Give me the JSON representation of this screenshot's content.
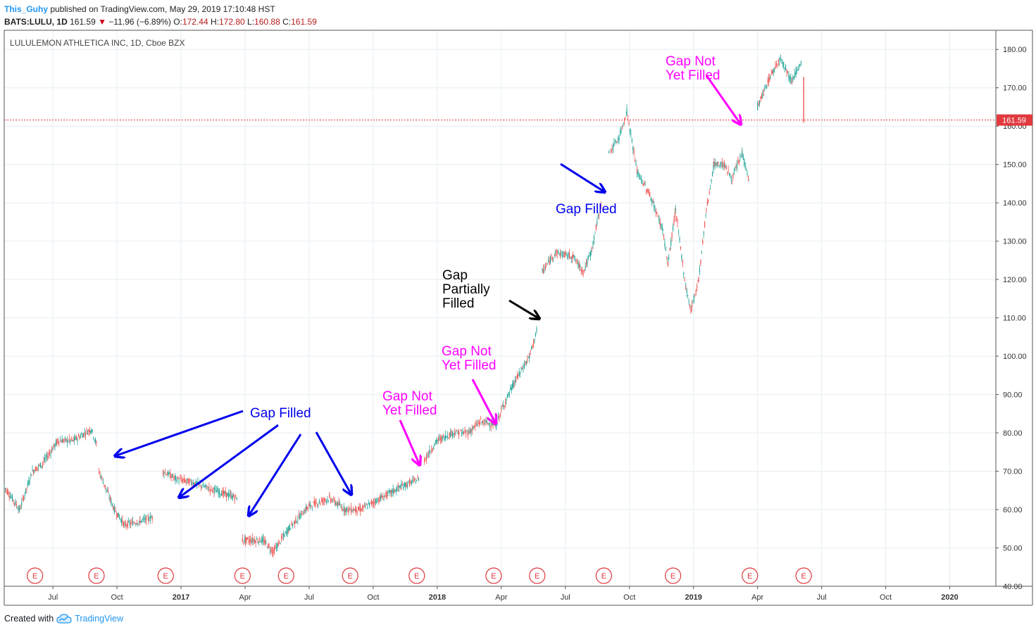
{
  "header": {
    "publisher": "This_Guhy",
    "published_text": "published on TradingView.com, May 29, 2019 17:10:48 HST",
    "symbol": "BATS:LULU, 1D",
    "last": "161.59",
    "change": "−11.96 (−6.89%)",
    "o_label": "O:",
    "o_value": "172.44",
    "h_label": "H:",
    "h_value": "172.80",
    "l_label": "L:",
    "l_value": "160.88",
    "c_label": "C:",
    "c_value": "161.59"
  },
  "footer": {
    "created_with": "Created with",
    "brand": "TradingView"
  },
  "chart_data": {
    "type": "candlestick",
    "title": "LULULEMON ATHLETICA INC, 1D, Cboe BZX",
    "ylim": [
      40,
      185
    ],
    "y_ticks": [
      40,
      50,
      60,
      70,
      80,
      90,
      100,
      110,
      120,
      130,
      140,
      150,
      160,
      170,
      180
    ],
    "y_tick_labels": [
      "40.00",
      "50.00",
      "60.00",
      "70.00",
      "80.00",
      "90.00",
      "100.00",
      "110.00",
      "120.00",
      "130.00",
      "140.00",
      "150.00",
      "160.00",
      "170.00",
      "180.00"
    ],
    "x_ticks": [
      {
        "label": "Jul",
        "t": 2016.5,
        "bold": false
      },
      {
        "label": "Oct",
        "t": 2016.75,
        "bold": false
      },
      {
        "label": "2017",
        "t": 2017.0,
        "bold": true
      },
      {
        "label": "Apr",
        "t": 2017.25,
        "bold": false
      },
      {
        "label": "Jul",
        "t": 2017.5,
        "bold": false
      },
      {
        "label": "Oct",
        "t": 2017.75,
        "bold": false
      },
      {
        "label": "2018",
        "t": 2018.0,
        "bold": true
      },
      {
        "label": "Apr",
        "t": 2018.25,
        "bold": false
      },
      {
        "label": "Jul",
        "t": 2018.5,
        "bold": false
      },
      {
        "label": "Oct",
        "t": 2018.75,
        "bold": false
      },
      {
        "label": "2019",
        "t": 2019.0,
        "bold": true
      },
      {
        "label": "Apr",
        "t": 2019.25,
        "bold": false
      },
      {
        "label": "Jul",
        "t": 2019.5,
        "bold": false
      },
      {
        "label": "Oct",
        "t": 2019.75,
        "bold": false
      },
      {
        "label": "2020",
        "t": 2020.0,
        "bold": true
      }
    ],
    "xlim": [
      2016.31,
      2020.18
    ],
    "last_price": 161.59,
    "last_price_label": "161.59",
    "earnings_marker": "E",
    "earnings_dates": [
      2016.43,
      2016.67,
      2016.94,
      2017.24,
      2017.41,
      2017.66,
      2017.92,
      2018.22,
      2018.39,
      2018.65,
      2018.92,
      2019.22,
      2019.43
    ],
    "price_path": [
      [
        2016.31,
        66
      ],
      [
        2016.37,
        60
      ],
      [
        2016.42,
        70
      ],
      [
        2016.46,
        72
      ],
      [
        2016.52,
        78
      ],
      [
        2016.58,
        78
      ],
      [
        2016.65,
        81
      ],
      [
        2016.67,
        77
      ],
      [
        2016.68,
        70
      ],
      [
        2016.74,
        60
      ],
      [
        2016.78,
        56
      ],
      [
        2016.84,
        57
      ],
      [
        2016.89,
        58
      ],
      [
        2016.93,
        70
      ],
      [
        2016.98,
        68
      ],
      [
        2017.05,
        67
      ],
      [
        2017.13,
        65
      ],
      [
        2017.22,
        63
      ],
      [
        2017.24,
        52
      ],
      [
        2017.32,
        52
      ],
      [
        2017.36,
        49
      ],
      [
        2017.42,
        55
      ],
      [
        2017.5,
        61
      ],
      [
        2017.58,
        63
      ],
      [
        2017.64,
        60
      ],
      [
        2017.7,
        60
      ],
      [
        2017.78,
        63
      ],
      [
        2017.86,
        66
      ],
      [
        2017.93,
        68
      ],
      [
        2017.95,
        73
      ],
      [
        2018.0,
        78
      ],
      [
        2018.06,
        80
      ],
      [
        2018.12,
        80
      ],
      [
        2018.17,
        83
      ],
      [
        2018.23,
        82
      ],
      [
        2018.25,
        86
      ],
      [
        2018.3,
        93
      ],
      [
        2018.36,
        100
      ],
      [
        2018.39,
        107
      ],
      [
        2018.41,
        122
      ],
      [
        2018.46,
        127
      ],
      [
        2018.53,
        126
      ],
      [
        2018.57,
        122
      ],
      [
        2018.6,
        127
      ],
      [
        2018.64,
        140
      ],
      [
        2018.67,
        153
      ],
      [
        2018.71,
        157
      ],
      [
        2018.74,
        164
      ],
      [
        2018.78,
        148
      ],
      [
        2018.83,
        142
      ],
      [
        2018.88,
        133
      ],
      [
        2018.9,
        124
      ],
      [
        2018.93,
        138
      ],
      [
        2018.97,
        118
      ],
      [
        2018.99,
        112
      ],
      [
        2019.02,
        120
      ],
      [
        2019.05,
        138
      ],
      [
        2019.08,
        150
      ],
      [
        2019.12,
        150
      ],
      [
        2019.15,
        146
      ],
      [
        2019.19,
        153
      ],
      [
        2019.22,
        145
      ],
      [
        2019.25,
        165
      ],
      [
        2019.3,
        173
      ],
      [
        2019.34,
        178
      ],
      [
        2019.38,
        172
      ],
      [
        2019.42,
        176
      ],
      [
        2019.43,
        161.59
      ]
    ],
    "annotations": [
      {
        "text": "Gap Filled",
        "color": "#0000ee"
      },
      {
        "text": "Gap Not\nYet Filled",
        "color": "#ff00ff"
      },
      {
        "text": "Gap Not\nYet Filled",
        "color": "#ff00ff"
      },
      {
        "text": "Gap\nPartially\nFilled",
        "color": "#000000"
      },
      {
        "text": "Gap Filled",
        "color": "#0000ee"
      },
      {
        "text": "Gap Not\nYet Filled",
        "color": "#ff00ff"
      }
    ]
  },
  "colors": {
    "up": "#26a69a",
    "down": "#ef5350",
    "grid": "#e6eef2",
    "price_line": "#e0393e"
  }
}
